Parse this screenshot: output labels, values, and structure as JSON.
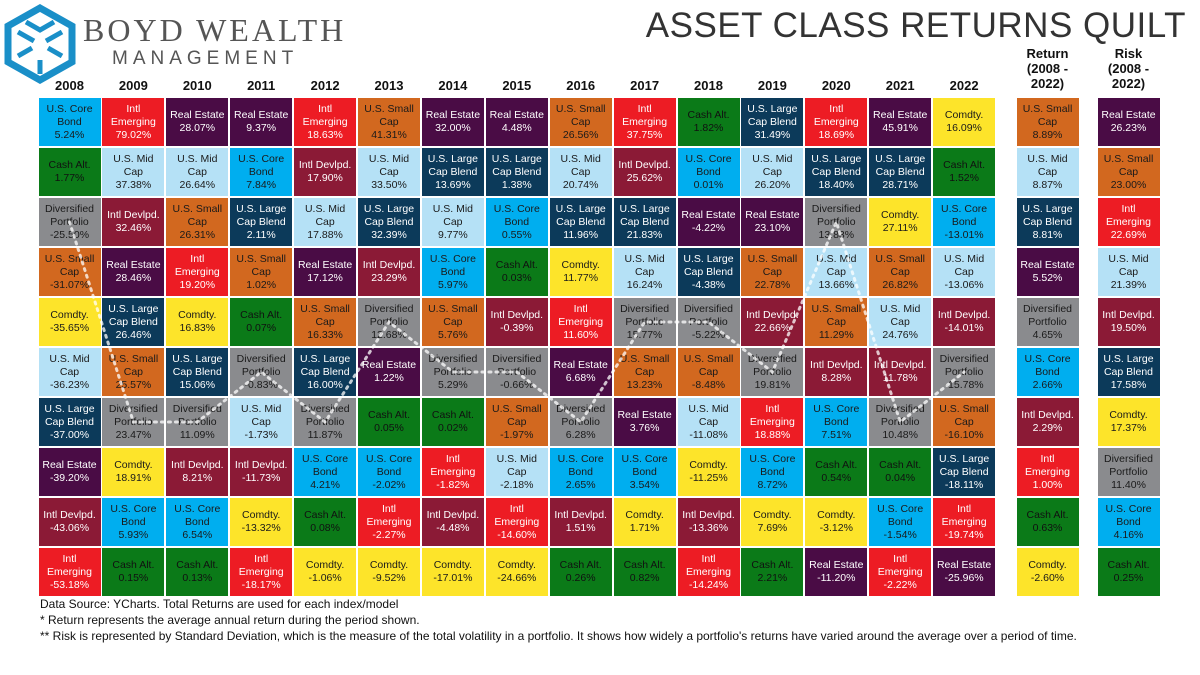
{
  "brand": {
    "line1": "BOYD WEALTH",
    "line2": "MANAGEMENT"
  },
  "title": "ASSET CLASS RETURNS QUILT",
  "asset_classes": {
    "bond": {
      "label": "U.S. Core\nBond",
      "color": "#00aeef",
      "text": "#1a1a1a"
    },
    "em": {
      "label": "Intl\nEmerging",
      "color": "#ed1c24",
      "text": "#ffffff"
    },
    "re": {
      "label": "Real Estate",
      "color": "#4a0c45",
      "text": "#ffffff"
    },
    "small": {
      "label": "U.S. Small\nCap",
      "color": "#d2681f",
      "text": "#1a1a1a"
    },
    "cash": {
      "label": "Cash Alt.",
      "color": "#0b7a18",
      "text": "#111111"
    },
    "mid": {
      "label": "U.S. Mid\nCap",
      "color": "#b5e1f6",
      "text": "#1a1a1a"
    },
    "dev": {
      "label": "Intl Devlpd.",
      "color": "#8b1a36",
      "text": "#ffffff"
    },
    "large": {
      "label": "U.S. Large\nCap Blend",
      "color": "#0c3a5a",
      "text": "#ffffff"
    },
    "div": {
      "label": "Diversified\nPortfolio",
      "color": "#8a8b8e",
      "text": "#1a1a1a"
    },
    "comdty": {
      "label": "Comdty.",
      "color": "#fde42a",
      "text": "#1a1a1a"
    }
  },
  "chart_data": {
    "type": "table",
    "title": "ASSET CLASS RETURNS QUILT",
    "columns": [
      {
        "header": "2008",
        "cells": [
          [
            "bond",
            "5.24%"
          ],
          [
            "cash",
            "1.77%"
          ],
          [
            "div",
            "-25.50%"
          ],
          [
            "small",
            "-31.07%"
          ],
          [
            "comdty",
            "-35.65%"
          ],
          [
            "mid",
            "-36.23%"
          ],
          [
            "large",
            "-37.00%"
          ],
          [
            "re",
            "-39.20%"
          ],
          [
            "dev",
            "-43.06%"
          ],
          [
            "em",
            "-53.18%"
          ]
        ]
      },
      {
        "header": "2009",
        "cells": [
          [
            "em",
            "79.02%"
          ],
          [
            "mid",
            "37.38%"
          ],
          [
            "dev",
            "32.46%"
          ],
          [
            "re",
            "28.46%"
          ],
          [
            "large",
            "26.46%"
          ],
          [
            "small",
            "25.57%"
          ],
          [
            "div",
            "23.47%"
          ],
          [
            "comdty",
            "18.91%"
          ],
          [
            "bond",
            "5.93%"
          ],
          [
            "cash",
            "0.15%"
          ]
        ]
      },
      {
        "header": "2010",
        "cells": [
          [
            "re",
            "28.07%"
          ],
          [
            "mid",
            "26.64%"
          ],
          [
            "small",
            "26.31%"
          ],
          [
            "em",
            "19.20%"
          ],
          [
            "comdty",
            "16.83%"
          ],
          [
            "large",
            "15.06%"
          ],
          [
            "div",
            "11.09%"
          ],
          [
            "dev",
            "8.21%"
          ],
          [
            "bond",
            "6.54%"
          ],
          [
            "cash",
            "0.13%"
          ]
        ]
      },
      {
        "header": "2011",
        "cells": [
          [
            "re",
            "9.37%"
          ],
          [
            "bond",
            "7.84%"
          ],
          [
            "large",
            "2.11%"
          ],
          [
            "small",
            "1.02%"
          ],
          [
            "cash",
            "0.07%"
          ],
          [
            "div",
            "-0.83%"
          ],
          [
            "mid",
            "-1.73%"
          ],
          [
            "dev",
            "-11.73%"
          ],
          [
            "comdty",
            "-13.32%"
          ],
          [
            "em",
            "-18.17%"
          ]
        ]
      },
      {
        "header": "2012",
        "cells": [
          [
            "em",
            "18.63%"
          ],
          [
            "dev",
            "17.90%"
          ],
          [
            "mid",
            "17.88%"
          ],
          [
            "re",
            "17.12%"
          ],
          [
            "small",
            "16.33%"
          ],
          [
            "large",
            "16.00%"
          ],
          [
            "div",
            "11.87%"
          ],
          [
            "bond",
            "4.21%"
          ],
          [
            "cash",
            "0.08%"
          ],
          [
            "comdty",
            "-1.06%"
          ]
        ]
      },
      {
        "header": "2013",
        "cells": [
          [
            "small",
            "41.31%"
          ],
          [
            "mid",
            "33.50%"
          ],
          [
            "large",
            "32.39%"
          ],
          [
            "dev",
            "23.29%"
          ],
          [
            "div",
            "12.68%"
          ],
          [
            "re",
            "1.22%"
          ],
          [
            "cash",
            "0.05%"
          ],
          [
            "bond",
            "-2.02%"
          ],
          [
            "em",
            "-2.27%"
          ],
          [
            "comdty",
            "-9.52%"
          ]
        ]
      },
      {
        "header": "2014",
        "cells": [
          [
            "re",
            "32.00%"
          ],
          [
            "large",
            "13.69%"
          ],
          [
            "mid",
            "9.77%"
          ],
          [
            "bond",
            "5.97%"
          ],
          [
            "small",
            "5.76%"
          ],
          [
            "div",
            "5.29%"
          ],
          [
            "cash",
            "0.02%"
          ],
          [
            "em",
            "-1.82%"
          ],
          [
            "dev",
            "-4.48%"
          ],
          [
            "comdty",
            "-17.01%"
          ]
        ]
      },
      {
        "header": "2015",
        "cells": [
          [
            "re",
            "4.48%"
          ],
          [
            "large",
            "1.38%"
          ],
          [
            "bond",
            "0.55%"
          ],
          [
            "cash",
            "0.03%"
          ],
          [
            "dev",
            "-0.39%"
          ],
          [
            "div",
            "-0.66%"
          ],
          [
            "small",
            "-1.97%"
          ],
          [
            "mid",
            "-2.18%"
          ],
          [
            "em",
            "-14.60%"
          ],
          [
            "comdty",
            "-24.66%"
          ]
        ]
      },
      {
        "header": "2016",
        "cells": [
          [
            "small",
            "26.56%"
          ],
          [
            "mid",
            "20.74%"
          ],
          [
            "large",
            "11.96%"
          ],
          [
            "comdty",
            "11.77%"
          ],
          [
            "em",
            "11.60%"
          ],
          [
            "re",
            "6.68%"
          ],
          [
            "div",
            "6.28%"
          ],
          [
            "bond",
            "2.65%"
          ],
          [
            "dev",
            "1.51%"
          ],
          [
            "cash",
            "0.26%"
          ]
        ]
      },
      {
        "header": "2017",
        "cells": [
          [
            "em",
            "37.75%"
          ],
          [
            "dev",
            "25.62%"
          ],
          [
            "large",
            "21.83%"
          ],
          [
            "mid",
            "16.24%"
          ],
          [
            "div",
            "15.77%"
          ],
          [
            "small",
            "13.23%"
          ],
          [
            "re",
            "3.76%"
          ],
          [
            "bond",
            "3.54%"
          ],
          [
            "comdty",
            "1.71%"
          ],
          [
            "cash",
            "0.82%"
          ]
        ]
      },
      {
        "header": "2018",
        "cells": [
          [
            "cash",
            "1.82%"
          ],
          [
            "bond",
            "0.01%"
          ],
          [
            "re",
            "-4.22%"
          ],
          [
            "large",
            "-4.38%"
          ],
          [
            "div",
            "-5.22%"
          ],
          [
            "small",
            "-8.48%"
          ],
          [
            "mid",
            "-11.08%"
          ],
          [
            "comdty",
            "-11.25%"
          ],
          [
            "dev",
            "-13.36%"
          ],
          [
            "em",
            "-14.24%"
          ]
        ]
      },
      {
        "header": "2019",
        "cells": [
          [
            "large",
            "31.49%"
          ],
          [
            "mid",
            "26.20%"
          ],
          [
            "re",
            "23.10%"
          ],
          [
            "small",
            "22.78%"
          ],
          [
            "dev",
            "22.66%"
          ],
          [
            "div",
            "19.81%"
          ],
          [
            "em",
            "18.88%"
          ],
          [
            "bond",
            "8.72%"
          ],
          [
            "comdty",
            "7.69%"
          ],
          [
            "cash",
            "2.21%"
          ]
        ]
      },
      {
        "header": "2020",
        "cells": [
          [
            "em",
            "18.69%"
          ],
          [
            "large",
            "18.40%"
          ],
          [
            "div",
            "13.83%"
          ],
          [
            "mid",
            "13.66%"
          ],
          [
            "small",
            "11.29%"
          ],
          [
            "dev",
            "8.28%"
          ],
          [
            "bond",
            "7.51%"
          ],
          [
            "cash",
            "0.54%"
          ],
          [
            "comdty",
            "-3.12%"
          ],
          [
            "re",
            "-11.20%"
          ]
        ]
      },
      {
        "header": "2021",
        "cells": [
          [
            "re",
            "45.91%"
          ],
          [
            "large",
            "28.71%"
          ],
          [
            "comdty",
            "27.11%"
          ],
          [
            "small",
            "26.82%"
          ],
          [
            "mid",
            "24.76%"
          ],
          [
            "dev",
            "11.78%"
          ],
          [
            "div",
            "10.48%"
          ],
          [
            "cash",
            "0.04%"
          ],
          [
            "bond",
            "-1.54%"
          ],
          [
            "em",
            "-2.22%"
          ]
        ]
      },
      {
        "header": "2022",
        "cells": [
          [
            "comdty",
            "16.09%"
          ],
          [
            "cash",
            "1.52%"
          ],
          [
            "bond",
            "-13.01%"
          ],
          [
            "mid",
            "-13.06%"
          ],
          [
            "dev",
            "-14.01%"
          ],
          [
            "div",
            "-15.78%"
          ],
          [
            "small",
            "-16.10%"
          ],
          [
            "large",
            "-18.11%"
          ],
          [
            "em",
            "-19.74%"
          ],
          [
            "re",
            "-25.96%"
          ]
        ]
      }
    ],
    "summary_columns": [
      {
        "header": "Return\n(2008 -\n2022)",
        "cells": [
          [
            "small",
            "8.89%"
          ],
          [
            "mid",
            "8.87%"
          ],
          [
            "large",
            "8.81%"
          ],
          [
            "re",
            "5.52%"
          ],
          [
            "div",
            "4.65%"
          ],
          [
            "bond",
            "2.66%"
          ],
          [
            "dev",
            "2.29%"
          ],
          [
            "em",
            "1.00%"
          ],
          [
            "cash",
            "0.63%"
          ],
          [
            "comdty",
            "-2.60%"
          ]
        ]
      },
      {
        "header": "Risk\n(2008 -\n2022)",
        "cells": [
          [
            "re",
            "26.23%"
          ],
          [
            "small",
            "23.00%"
          ],
          [
            "em",
            "22.69%"
          ],
          [
            "mid",
            "21.39%"
          ],
          [
            "dev",
            "19.50%"
          ],
          [
            "large",
            "17.58%"
          ],
          [
            "comdty",
            "17.37%"
          ],
          [
            "div",
            "11.40%"
          ],
          [
            "bond",
            "4.16%"
          ],
          [
            "cash",
            "0.25%"
          ]
        ]
      }
    ],
    "highlight_series": "div"
  },
  "footnotes": [
    "Data Source: YCharts. Total Returns are used for each index/model",
    "* Return represents the average annual return during the period shown.",
    "** Risk is represented by Standard Deviation, which is the measure of the total volatility in a portfolio. It shows how widely a portfolio's returns have varied around the average over a period of time."
  ]
}
